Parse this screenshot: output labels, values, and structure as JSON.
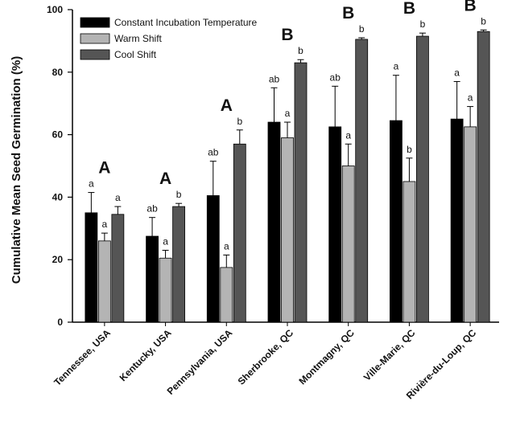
{
  "chart_data": {
    "type": "bar",
    "title": "",
    "xlabel": "",
    "ylabel": "Cumulative Mean Seed Germination (%)",
    "ylim": [
      0,
      100
    ],
    "yticks": [
      0,
      20,
      40,
      60,
      80,
      100
    ],
    "grid": false,
    "legend_position": "top-left",
    "categories": [
      "Tennessee, USA",
      "Kentucky, USA",
      "Pennsylvania, USA",
      "Sherbrooke, QC",
      "Montmagny, QC",
      "Ville-Marie, QC",
      "Rivière-du-Loup, QC"
    ],
    "series": [
      {
        "name": "Constant Incubation Temperature",
        "color": "#000000",
        "values": [
          35,
          27.5,
          40.5,
          64,
          62.5,
          64.5,
          65
        ],
        "errors": [
          6.5,
          6,
          11,
          11,
          13,
          14.5,
          12
        ],
        "letters": [
          "a",
          "ab",
          "ab",
          "ab",
          "ab",
          "a",
          "a"
        ]
      },
      {
        "name": "Warm Shift",
        "color": "#b4b4b4",
        "values": [
          26,
          20.5,
          17.5,
          59,
          50,
          45,
          62.5
        ],
        "errors": [
          2.5,
          2.5,
          4,
          5,
          7,
          7.5,
          6.5
        ],
        "letters": [
          "a",
          "a",
          "a",
          "a",
          "a",
          "b",
          "a"
        ]
      },
      {
        "name": "Cool Shift",
        "color": "#555555",
        "values": [
          34.5,
          37,
          57,
          83,
          90.5,
          91.5,
          93
        ],
        "errors": [
          2.5,
          1,
          4.5,
          1,
          0.5,
          1,
          0.5
        ],
        "letters": [
          "a",
          "b",
          "b",
          "b",
          "b",
          "b",
          "b"
        ]
      }
    ],
    "group_letters": [
      "A",
      "A",
      "A",
      "B",
      "B",
      "B",
      "B"
    ]
  }
}
